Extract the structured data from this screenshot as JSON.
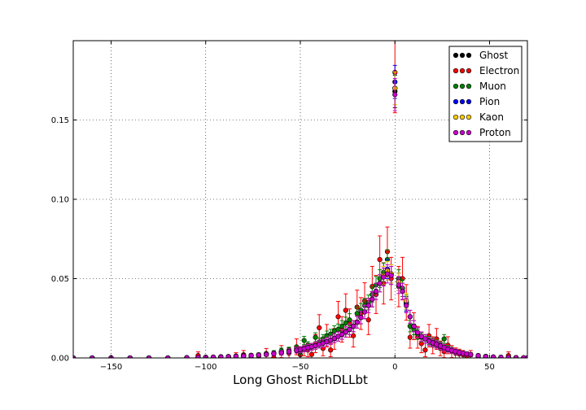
{
  "chart_data": {
    "type": "scatter",
    "title": "",
    "xlabel": "Long Ghost RichDLLbt",
    "ylabel": "",
    "xlim": [
      -170,
      70
    ],
    "ylim": [
      0,
      0.2
    ],
    "xticks": [
      -150,
      -100,
      -50,
      0,
      50
    ],
    "xtick_labels": [
      "−150",
      "−100",
      "−50",
      "0",
      "50"
    ],
    "yticks": [
      0.0,
      0.05,
      0.1,
      0.15
    ],
    "ytick_labels": [
      "0.00",
      "0.05",
      "0.10",
      "0.15"
    ],
    "grid": true,
    "legend_position": "top-right",
    "x": [
      -170,
      -160,
      -150,
      -140,
      -130,
      -120,
      -110,
      -104,
      -100,
      -96,
      -92,
      -88,
      -84,
      -80,
      -76,
      -72,
      -68,
      -64,
      -60,
      -56,
      -52,
      -50,
      -48,
      -46,
      -44,
      -42,
      -40,
      -38,
      -36,
      -34,
      -32,
      -30,
      -28,
      -26,
      -24,
      -22,
      -20,
      -18,
      -16,
      -14,
      -12,
      -10,
      -8,
      -6,
      -4,
      -2,
      0,
      2,
      4,
      6,
      8,
      10,
      12,
      14,
      16,
      18,
      20,
      22,
      24,
      26,
      28,
      30,
      32,
      34,
      36,
      38,
      40,
      44,
      48,
      52,
      56,
      60,
      64,
      68,
      70
    ],
    "series": [
      {
        "name": "Ghost",
        "color": "#000000",
        "values": [
          0,
          0,
          0,
          0,
          0,
          0,
          0.0002,
          0.0003,
          0.0004,
          0.0005,
          0.0006,
          0.0008,
          0.001,
          0.0012,
          0.0015,
          0.0018,
          0.0022,
          0.0027,
          0.0033,
          0.004,
          0.0048,
          0.0053,
          0.0058,
          0.0064,
          0.007,
          0.0077,
          0.0085,
          0.0093,
          0.0102,
          0.0112,
          0.0123,
          0.0135,
          0.0148,
          0.0163,
          0.018,
          0.02,
          0.0225,
          0.0255,
          0.029,
          0.033,
          0.037,
          0.042,
          0.047,
          0.052,
          0.056,
          0.053,
          0.168,
          0.048,
          0.042,
          0.034,
          0.026,
          0.02,
          0.016,
          0.0135,
          0.012,
          0.0105,
          0.0095,
          0.0085,
          0.0075,
          0.0065,
          0.0055,
          0.0047,
          0.004,
          0.0034,
          0.0029,
          0.0025,
          0.0021,
          0.0014,
          0.0009,
          0.0006,
          0.0004,
          0.0003,
          0.0002,
          0.0001,
          0
        ]
      },
      {
        "name": "Electron",
        "color": "#ff0000",
        "values": [
          0,
          0,
          0,
          0,
          0,
          0,
          0,
          0.0015,
          0,
          0,
          0.0008,
          0,
          0.0012,
          0.002,
          0,
          0.001,
          0.0028,
          0,
          0.004,
          0.003,
          0.007,
          0.002,
          0.006,
          0.005,
          0.0022,
          0.009,
          0.019,
          0.006,
          0.014,
          0.005,
          0.012,
          0.026,
          0.018,
          0.03,
          0.022,
          0.014,
          0.032,
          0.028,
          0.036,
          0.024,
          0.045,
          0.04,
          0.062,
          0.047,
          0.067,
          0.05,
          0.18,
          0.045,
          0.05,
          0.035,
          0.013,
          0.02,
          0.013,
          0.009,
          0.005,
          0.014,
          0.008,
          0.012,
          0.006,
          0.004,
          0.008,
          0.004,
          0.003,
          0.0025,
          0.002,
          0.001,
          0.002,
          0.0008,
          0.001,
          0.0005,
          0,
          0.0015,
          0,
          0,
          0
        ]
      },
      {
        "name": "Muon",
        "color": "#008000",
        "values": [
          0,
          0,
          0,
          0,
          0,
          0,
          0,
          0.0003,
          0.0004,
          0.0005,
          0.0007,
          0.0009,
          0.0011,
          0.0014,
          0.0017,
          0.002,
          0.0025,
          0.0032,
          0.0045,
          0.005,
          0.006,
          0.004,
          0.011,
          0.008,
          0.007,
          0.013,
          0.01,
          0.012,
          0.014,
          0.015,
          0.017,
          0.018,
          0.02,
          0.022,
          0.024,
          0.02,
          0.028,
          0.03,
          0.033,
          0.035,
          0.04,
          0.046,
          0.05,
          0.054,
          0.062,
          0.052,
          0.17,
          0.05,
          0.044,
          0.035,
          0.02,
          0.018,
          0.015,
          0.013,
          0.012,
          0.011,
          0.01,
          0.009,
          0.008,
          0.012,
          0.006,
          0.005,
          0.004,
          0.0035,
          0.003,
          0.0025,
          0.002,
          0.0015,
          0.001,
          0.0006,
          0.0004,
          0.0003,
          0.0002,
          0.0001,
          0
        ]
      },
      {
        "name": "Pion",
        "color": "#0000ff",
        "values": [
          0,
          0,
          0,
          0,
          0,
          0,
          0.0002,
          0.0003,
          0.0004,
          0.0005,
          0.0006,
          0.0008,
          0.001,
          0.0012,
          0.0015,
          0.0018,
          0.0022,
          0.0027,
          0.0033,
          0.004,
          0.0048,
          0.0053,
          0.0058,
          0.0064,
          0.007,
          0.0077,
          0.0085,
          0.0093,
          0.0102,
          0.0112,
          0.0123,
          0.0135,
          0.0148,
          0.0163,
          0.018,
          0.02,
          0.0225,
          0.0255,
          0.029,
          0.033,
          0.037,
          0.042,
          0.047,
          0.052,
          0.056,
          0.053,
          0.174,
          0.048,
          0.042,
          0.034,
          0.026,
          0.02,
          0.016,
          0.0135,
          0.012,
          0.0105,
          0.0095,
          0.0085,
          0.0075,
          0.0065,
          0.0055,
          0.0047,
          0.004,
          0.0034,
          0.0029,
          0.0025,
          0.0021,
          0.0014,
          0.0009,
          0.0006,
          0.0004,
          0.0003,
          0.0002,
          0.0001,
          0
        ]
      },
      {
        "name": "Kaon",
        "color": "#ffcc00",
        "values": [
          0,
          0,
          0,
          0,
          0,
          0,
          0.0002,
          0.0003,
          0.0004,
          0.0005,
          0.0006,
          0.0008,
          0.001,
          0.0012,
          0.0015,
          0.0018,
          0.0022,
          0.0027,
          0.0033,
          0.004,
          0.0048,
          0.0053,
          0.0058,
          0.0064,
          0.007,
          0.0077,
          0.0085,
          0.0093,
          0.0102,
          0.0112,
          0.0123,
          0.0135,
          0.0148,
          0.0163,
          0.018,
          0.02,
          0.0225,
          0.0255,
          0.029,
          0.033,
          0.037,
          0.042,
          0.047,
          0.052,
          0.055,
          0.053,
          0.17,
          0.048,
          0.042,
          0.036,
          0.026,
          0.02,
          0.016,
          0.0135,
          0.012,
          0.0105,
          0.0095,
          0.0085,
          0.0075,
          0.0065,
          0.0055,
          0.0047,
          0.004,
          0.0034,
          0.0029,
          0.0025,
          0.0021,
          0.0014,
          0.0009,
          0.0006,
          0.0004,
          0.0003,
          0.0002,
          0.0001,
          0
        ]
      },
      {
        "name": "Proton",
        "color": "#cc00cc",
        "values": [
          0,
          0,
          0,
          0,
          0,
          0,
          0.0002,
          0.0003,
          0.0004,
          0.0005,
          0.0006,
          0.0008,
          0.001,
          0.0012,
          0.0015,
          0.0018,
          0.0022,
          0.0027,
          0.0033,
          0.004,
          0.0048,
          0.0053,
          0.0058,
          0.0064,
          0.007,
          0.0077,
          0.0085,
          0.0093,
          0.0102,
          0.0112,
          0.0123,
          0.0135,
          0.0148,
          0.0163,
          0.018,
          0.02,
          0.0225,
          0.0255,
          0.029,
          0.033,
          0.037,
          0.042,
          0.047,
          0.051,
          0.053,
          0.052,
          0.166,
          0.046,
          0.042,
          0.033,
          0.026,
          0.02,
          0.016,
          0.0135,
          0.012,
          0.0105,
          0.0095,
          0.0085,
          0.0075,
          0.0065,
          0.0055,
          0.0047,
          0.004,
          0.0034,
          0.0029,
          0.0025,
          0.0021,
          0.0014,
          0.0009,
          0.0006,
          0.0004,
          0.0003,
          0.0002,
          0.0001,
          0
        ]
      }
    ]
  }
}
